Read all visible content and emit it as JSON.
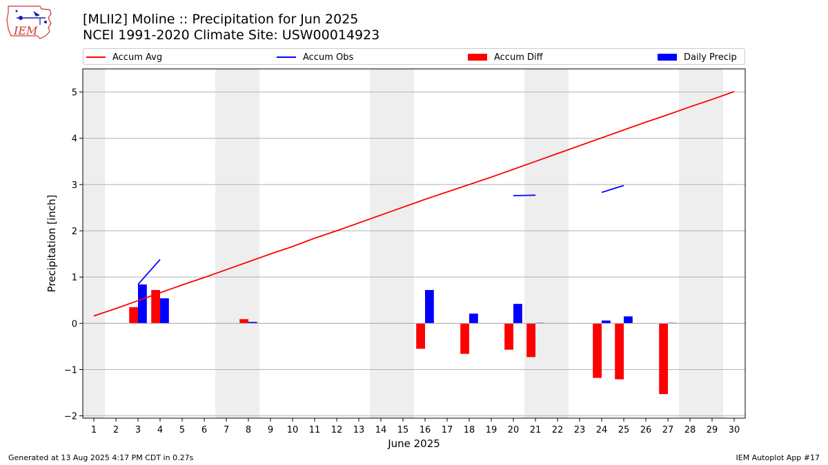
{
  "header": {
    "title_line1": "[MLII2] Moline :: Precipitation for Jun 2025",
    "title_line2": "NCEI 1991-2020 Climate Site: USW00014923",
    "logo_text": "IEM"
  },
  "footer": {
    "left": "Generated at 13 Aug 2025 4:17 PM CDT in 0.27s",
    "right": "IEM Autoplot App #17"
  },
  "colors": {
    "accum_avg": "#ff0000",
    "accum_obs": "#0000ff",
    "accum_diff": "#ff0000",
    "daily_precip": "#0000ff",
    "weekend_shade": "#eeeeee",
    "grid": "#b0b0b0"
  },
  "chart_data": {
    "type": "bar",
    "xlabel": "June 2025",
    "ylabel": "Precipitation [inch]",
    "xlim": [
      0.5,
      30.5
    ],
    "ylim": [
      -2.05,
      5.5
    ],
    "yticks": [
      -2,
      -1,
      0,
      1,
      2,
      3,
      4,
      5
    ],
    "ytick_labels": [
      "−2",
      "−1",
      "0",
      "1",
      "2",
      "3",
      "4",
      "5"
    ],
    "days": [
      1,
      2,
      3,
      4,
      5,
      6,
      7,
      8,
      9,
      10,
      11,
      12,
      13,
      14,
      15,
      16,
      17,
      18,
      19,
      20,
      21,
      22,
      23,
      24,
      25,
      26,
      27,
      28,
      29,
      30
    ],
    "weekend_days": [
      1,
      7,
      8,
      14,
      15,
      21,
      22,
      28,
      29
    ],
    "grid": "horizontal",
    "legend_location": "top, above plot",
    "series": [
      {
        "name": "Accum Avg",
        "kind": "line",
        "x": [
          1,
          2,
          3,
          4,
          5,
          6,
          7,
          8,
          9,
          10,
          11,
          12,
          13,
          14,
          15,
          16,
          17,
          18,
          19,
          20,
          21,
          22,
          23,
          24,
          25,
          26,
          27,
          28,
          29,
          30
        ],
        "values": [
          0.16,
          0.32,
          0.49,
          0.66,
          0.83,
          0.99,
          1.16,
          1.33,
          1.5,
          1.66,
          1.84,
          2.0,
          2.17,
          2.34,
          2.51,
          2.68,
          2.84,
          3.0,
          3.16,
          3.33,
          3.5,
          3.67,
          3.84,
          4.01,
          4.18,
          4.35,
          4.51,
          4.68,
          4.84,
          5.01
        ]
      },
      {
        "name": "Accum Obs",
        "kind": "line",
        "segments": [
          {
            "x": [
              3,
              4
            ],
            "values": [
              0.84,
              1.38
            ]
          },
          {
            "x": [
              20,
              21
            ],
            "values": [
              2.76,
              2.77
            ]
          },
          {
            "x": [
              24,
              25
            ],
            "values": [
              2.83,
              2.98
            ]
          }
        ]
      },
      {
        "name": "Accum Diff",
        "kind": "bar",
        "x": [
          3,
          4,
          8,
          16,
          18,
          20,
          21,
          24,
          25,
          27
        ],
        "values": [
          0.35,
          0.72,
          0.09,
          -0.55,
          -0.66,
          -0.57,
          -0.73,
          -1.18,
          -1.21,
          -1.53
        ]
      },
      {
        "name": "Daily Precip",
        "kind": "bar",
        "x": [
          3,
          4,
          8,
          16,
          18,
          20,
          21,
          24,
          25,
          27
        ],
        "values": [
          0.84,
          0.54,
          0.03,
          0.72,
          0.21,
          0.42,
          0.01,
          0.06,
          0.15,
          0.01
        ]
      }
    ]
  }
}
